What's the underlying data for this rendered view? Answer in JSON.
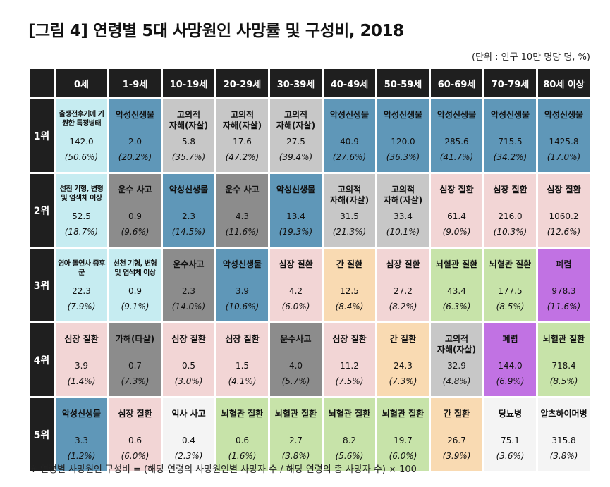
{
  "title": "[그림 4] 연령별 5대 사망원인 사망률 및 구성비, 2018",
  "unit": "(단위 : 인구 10만 명당 명, %)",
  "footnote": "※ 연령별 사망원인 구성비 = (해당 연령의 사망원인별 사망자 수 / 해당 연령의 총 사망자 수) × 100",
  "colors": {
    "blue": "#5f97b8",
    "cyan": "#c6ecf1",
    "gray": "#8c8c8c",
    "lightgray": "#c7c7c7",
    "pink": "#f2d5d5",
    "orange": "#f9dab2",
    "green": "#c7e3a9",
    "purple": "#c172e3",
    "header": "#1f1f1f"
  },
  "age_groups": [
    "0세",
    "1-9세",
    "10-19세",
    "20-29세",
    "30-39세",
    "40-49세",
    "50-59세",
    "60-69세",
    "70-79세",
    "80세 이상"
  ],
  "ranks": [
    {
      "label": "1위",
      "cells": [
        {
          "cause": "출생전후기에 기원한 특정병태",
          "rate": "142.0",
          "pct": "(50.6%)",
          "color": "cyan",
          "small": true
        },
        {
          "cause": "악성신생물",
          "rate": "2.0",
          "pct": "(20.2%)",
          "color": "blue"
        },
        {
          "cause": "고의적\n자해(자살)",
          "rate": "5.8",
          "pct": "(35.7%)",
          "color": "lightgray"
        },
        {
          "cause": "고의적\n자해(자살)",
          "rate": "17.6",
          "pct": "(47.2%)",
          "color": "lightgray"
        },
        {
          "cause": "고의적\n자해(자살)",
          "rate": "27.5",
          "pct": "(39.4%)",
          "color": "lightgray"
        },
        {
          "cause": "악성신생물",
          "rate": "40.9",
          "pct": "(27.6%)",
          "color": "blue"
        },
        {
          "cause": "악성신생물",
          "rate": "120.0",
          "pct": "(36.3%)",
          "color": "blue"
        },
        {
          "cause": "악성신생물",
          "rate": "285.6",
          "pct": "(41.7%)",
          "color": "blue"
        },
        {
          "cause": "악성신생물",
          "rate": "715.5",
          "pct": "(34.2%)",
          "color": "blue"
        },
        {
          "cause": "악성신생물",
          "rate": "1425.8",
          "pct": "(17.0%)",
          "color": "blue"
        }
      ]
    },
    {
      "label": "2위",
      "cells": [
        {
          "cause": "선천 기형, 변형 및 염색체 이상",
          "rate": "52.5",
          "pct": "(18.7%)",
          "color": "cyan",
          "small": true
        },
        {
          "cause": "운수 사고",
          "rate": "0.9",
          "pct": "(9.6%)",
          "color": "gray"
        },
        {
          "cause": "악성신생물",
          "rate": "2.3",
          "pct": "(14.5%)",
          "color": "blue"
        },
        {
          "cause": "운수 사고",
          "rate": "4.3",
          "pct": "(11.6%)",
          "color": "gray"
        },
        {
          "cause": "악성신생물",
          "rate": "13.4",
          "pct": "(19.3%)",
          "color": "blue"
        },
        {
          "cause": "고의적\n자해(자살)",
          "rate": "31.5",
          "pct": "(21.3%)",
          "color": "lightgray"
        },
        {
          "cause": "고의적\n자해(자살)",
          "rate": "33.4",
          "pct": "(10.1%)",
          "color": "lightgray"
        },
        {
          "cause": "심장 질환",
          "rate": "61.4",
          "pct": "(9.0%)",
          "color": "pink"
        },
        {
          "cause": "심장 질환",
          "rate": "216.0",
          "pct": "(10.3%)",
          "color": "pink"
        },
        {
          "cause": "심장 질환",
          "rate": "1060.2",
          "pct": "(12.6%)",
          "color": "pink"
        }
      ]
    },
    {
      "label": "3위",
      "cells": [
        {
          "cause": "영아 돌연사 증후군",
          "rate": "22.3",
          "pct": "(7.9%)",
          "color": "cyan",
          "small": true
        },
        {
          "cause": "선천 기형, 변형 및 염색체 이상",
          "rate": "0.9",
          "pct": "(9.1%)",
          "color": "cyan",
          "small": true
        },
        {
          "cause": "운수사고",
          "rate": "2.3",
          "pct": "(14.0%)",
          "color": "gray"
        },
        {
          "cause": "악성신생물",
          "rate": "3.9",
          "pct": "(10.6%)",
          "color": "blue"
        },
        {
          "cause": "심장 질환",
          "rate": "4.2",
          "pct": "(6.0%)",
          "color": "pink"
        },
        {
          "cause": "간 질환",
          "rate": "12.5",
          "pct": "(8.4%)",
          "color": "orange"
        },
        {
          "cause": "심장 질환",
          "rate": "27.2",
          "pct": "(8.2%)",
          "color": "pink"
        },
        {
          "cause": "뇌혈관 질환",
          "rate": "43.4",
          "pct": "(6.3%)",
          "color": "green"
        },
        {
          "cause": "뇌혈관 질환",
          "rate": "177.5",
          "pct": "(8.5%)",
          "color": "green"
        },
        {
          "cause": "폐렴",
          "rate": "978.3",
          "pct": "(11.6%)",
          "color": "purple"
        }
      ]
    },
    {
      "label": "4위",
      "cells": [
        {
          "cause": "심장 질환",
          "rate": "3.9",
          "pct": "(1.4%)",
          "color": "pink"
        },
        {
          "cause": "가해(타살)",
          "rate": "0.7",
          "pct": "(7.3%)",
          "color": "gray"
        },
        {
          "cause": "심장 질환",
          "rate": "0.5",
          "pct": "(3.0%)",
          "color": "pink"
        },
        {
          "cause": "심장 질환",
          "rate": "1.5",
          "pct": "(4.1%)",
          "color": "pink"
        },
        {
          "cause": "운수사고",
          "rate": "4.0",
          "pct": "(5.7%)",
          "color": "gray"
        },
        {
          "cause": "심장 질환",
          "rate": "11.2",
          "pct": "(7.5%)",
          "color": "pink"
        },
        {
          "cause": "간 질환",
          "rate": "24.3",
          "pct": "(7.3%)",
          "color": "orange"
        },
        {
          "cause": "고의적\n자해(자살)",
          "rate": "32.9",
          "pct": "(4.8%)",
          "color": "lightgray"
        },
        {
          "cause": "폐렴",
          "rate": "144.0",
          "pct": "(6.9%)",
          "color": "purple"
        },
        {
          "cause": "뇌혈관 질환",
          "rate": "718.4",
          "pct": "(8.5%)",
          "color": "green"
        }
      ]
    },
    {
      "label": "5위",
      "cells": [
        {
          "cause": "악성신생물",
          "rate": "3.3",
          "pct": "(1.2%)",
          "color": "blue"
        },
        {
          "cause": "심장 질환",
          "rate": "0.6",
          "pct": "(6.0%)",
          "color": "pink"
        },
        {
          "cause": "익사 사고",
          "rate": "0.4",
          "pct": "(2.3%)",
          "color": "white"
        },
        {
          "cause": "뇌혈관 질환",
          "rate": "0.6",
          "pct": "(1.6%)",
          "color": "green"
        },
        {
          "cause": "뇌혈관 질환",
          "rate": "2.7",
          "pct": "(3.8%)",
          "color": "green"
        },
        {
          "cause": "뇌혈관 질환",
          "rate": "8.2",
          "pct": "(5.6%)",
          "color": "green"
        },
        {
          "cause": "뇌혈관 질환",
          "rate": "19.7",
          "pct": "(6.0%)",
          "color": "green"
        },
        {
          "cause": "간 질환",
          "rate": "26.7",
          "pct": "(3.9%)",
          "color": "orange"
        },
        {
          "cause": "당뇨병",
          "rate": "75.1",
          "pct": "(3.6%)",
          "color": "white"
        },
        {
          "cause": "알츠하이머병",
          "rate": "315.8",
          "pct": "(3.8%)",
          "color": "white"
        }
      ]
    }
  ]
}
